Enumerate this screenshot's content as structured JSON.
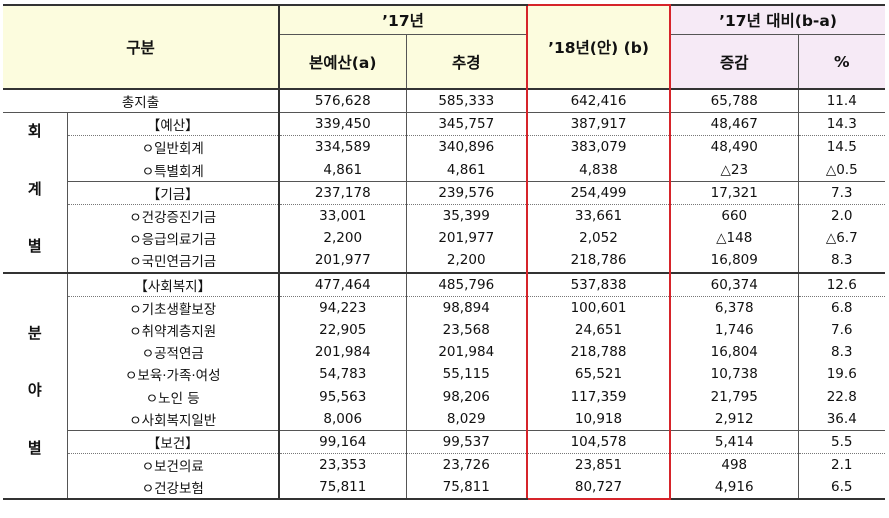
{
  "headers": {
    "category": "구분",
    "year17": "’17년",
    "main_budget": "본예산(a)",
    "supplementary": "추경",
    "year18": "’18년(안) (b)",
    "vs17": "’17년 대비(b-a)",
    "change": "증감",
    "percent": "%"
  },
  "sections": {
    "accounting": [
      "회",
      "계",
      "별"
    ],
    "field": [
      "분",
      "야",
      "별"
    ]
  },
  "rows": [
    {
      "label": "총지출",
      "a": "576,628",
      "supp": "585,333",
      "b": "642,416",
      "diff": "65,788",
      "pct": "11.4"
    },
    {
      "label": "【예산】",
      "a": "339,450",
      "supp": "345,757",
      "b": "387,917",
      "diff": "48,467",
      "pct": "14.3"
    },
    {
      "label": "ㅇ일반회계",
      "a": "334,589",
      "supp": "340,896",
      "b": "383,079",
      "diff": "48,490",
      "pct": "14.5"
    },
    {
      "label": "ㅇ특별회계",
      "a": "4,861",
      "supp": "4,861",
      "b": "4,838",
      "diff": "△23",
      "pct": "△0.5"
    },
    {
      "label": "【기금】",
      "a": "237,178",
      "supp": "239,576",
      "b": "254,499",
      "diff": "17,321",
      "pct": "7.3"
    },
    {
      "label": "ㅇ건강증진기금",
      "a": "33,001",
      "supp": "35,399",
      "b": "33,661",
      "diff": "660",
      "pct": "2.0"
    },
    {
      "label": "ㅇ응급의료기금",
      "a": "2,200",
      "supp": "201,977",
      "b": "2,052",
      "diff": "△148",
      "pct": "△6.7"
    },
    {
      "label": "ㅇ국민연금기금",
      "a": "201,977",
      "supp": "2,200",
      "b": "218,786",
      "diff": "16,809",
      "pct": "8.3"
    },
    {
      "label": "【사회복지】",
      "a": "477,464",
      "supp": "485,796",
      "b": "537,838",
      "diff": "60,374",
      "pct": "12.6"
    },
    {
      "label": "ㅇ기초생활보장",
      "a": "94,223",
      "supp": "98,894",
      "b": "100,601",
      "diff": "6,378",
      "pct": "6.8"
    },
    {
      "label": "ㅇ취약계층지원",
      "a": "22,905",
      "supp": "23,568",
      "b": "24,651",
      "diff": "1,746",
      "pct": "7.6"
    },
    {
      "label": "ㅇ공적연금",
      "a": "201,984",
      "supp": "201,984",
      "b": "218,788",
      "diff": "16,804",
      "pct": "8.3"
    },
    {
      "label": "ㅇ보육·가족·여성",
      "a": "54,783",
      "supp": "55,115",
      "b": "65,521",
      "diff": "10,738",
      "pct": "19.6"
    },
    {
      "label": "ㅇ노인 등",
      "a": "95,563",
      "supp": "98,206",
      "b": "117,359",
      "diff": "21,795",
      "pct": "22.8"
    },
    {
      "label": "ㅇ사회복지일반",
      "a": "8,006",
      "supp": "8,029",
      "b": "10,918",
      "diff": "2,912",
      "pct": "36.4"
    },
    {
      "label": "【보건】",
      "a": "99,164",
      "supp": "99,537",
      "b": "104,578",
      "diff": "5,414",
      "pct": "5.5"
    },
    {
      "label": "ㅇ보건의료",
      "a": "23,353",
      "supp": "23,726",
      "b": "23,851",
      "diff": "498",
      "pct": "2.1"
    },
    {
      "label": "ㅇ건강보험",
      "a": "75,811",
      "supp": "75,811",
      "b": "80,727",
      "diff": "4,916",
      "pct": "6.5"
    }
  ]
}
